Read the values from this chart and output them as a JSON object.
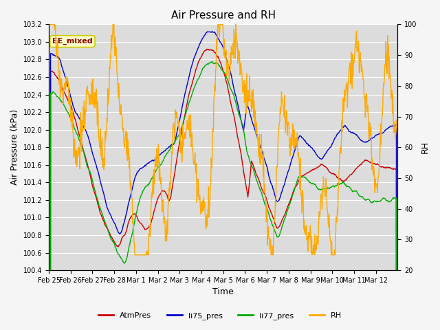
{
  "title": "Air Pressure and RH",
  "xlabel": "Time",
  "ylabel_left": "Air Pressure (kPa)",
  "ylabel_right": "RH",
  "ylim_left": [
    100.4,
    103.2
  ],
  "ylim_right": [
    20,
    100
  ],
  "yticks_left": [
    100.4,
    100.6,
    100.8,
    101.0,
    101.2,
    101.4,
    101.6,
    101.8,
    102.0,
    102.2,
    102.4,
    102.6,
    102.8,
    103.0,
    103.2
  ],
  "yticks_right": [
    20,
    30,
    40,
    50,
    60,
    70,
    80,
    90,
    100
  ],
  "xtick_labels": [
    "Feb 25",
    "Feb 26",
    "Feb 27",
    "Feb 28",
    "Mar 1",
    "Mar 2",
    "Mar 3",
    "Mar 4",
    "Mar 5",
    "Mar 6",
    "Mar 7",
    "Mar 8",
    "Mar 9",
    "Mar 10",
    "Mar 11",
    "Mar 12"
  ],
  "annotation_text": "EE_mixed",
  "colors": {
    "AtmPres": "#cc0000",
    "li75_pres": "#0000cc",
    "li77_pres": "#00aa00",
    "RH": "#ffaa00"
  },
  "legend_labels": [
    "AtmPres",
    "li75_pres",
    "li77_pres",
    "RH"
  ],
  "bg_color": "#dcdcdc",
  "fig_color": "#f5f5f5",
  "grid_color": "#ffffff",
  "linewidth": 1.0,
  "num_points": 800
}
